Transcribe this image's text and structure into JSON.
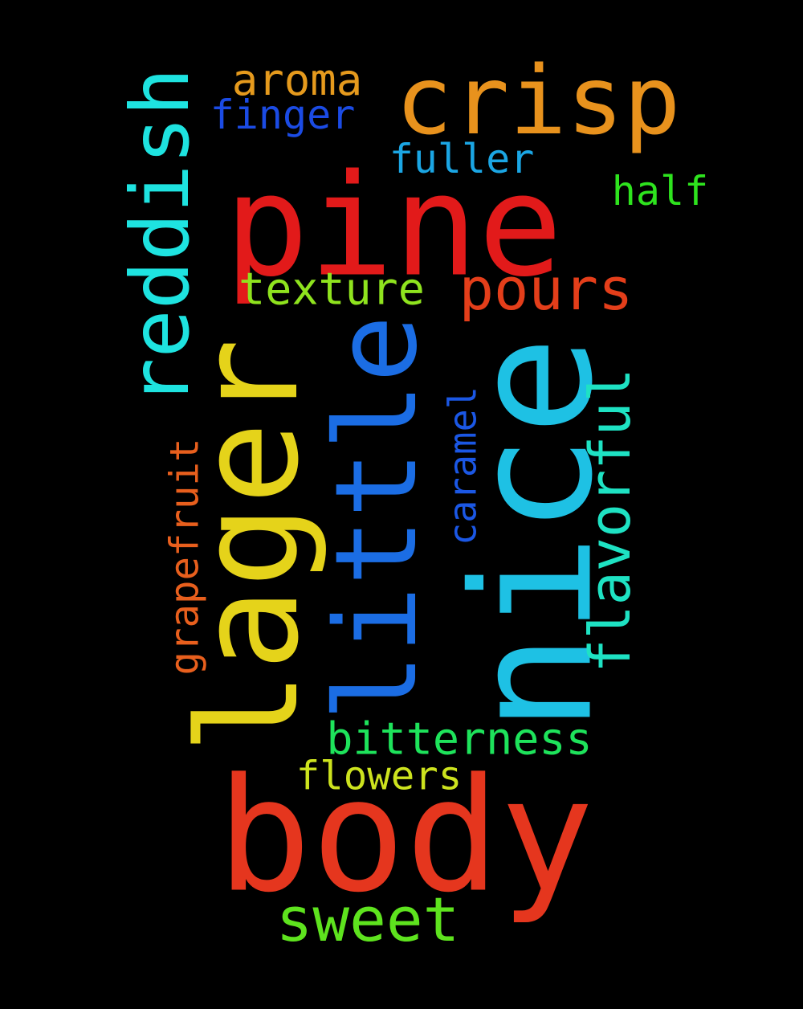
{
  "background": "#000000",
  "words": {
    "pine": {
      "text": "pine",
      "color": "#e21a1a",
      "orientation": "horizontal"
    },
    "body": {
      "text": "body",
      "color": "#e5361e",
      "orientation": "horizontal"
    },
    "crisp": {
      "text": "crisp",
      "color": "#e8921d",
      "orientation": "horizontal"
    },
    "nice": {
      "text": "nice",
      "color": "#1ec1e4",
      "orientation": "vertical"
    },
    "lager": {
      "text": "lager",
      "color": "#e5d31a",
      "orientation": "vertical"
    },
    "little": {
      "text": "little",
      "color": "#1b6de4",
      "orientation": "vertical"
    },
    "reddish": {
      "text": "reddish",
      "color": "#1ee3e0",
      "orientation": "vertical"
    },
    "pours": {
      "text": "pours",
      "color": "#e43e1a",
      "orientation": "horizontal"
    },
    "sweet": {
      "text": "sweet",
      "color": "#5ee31e",
      "orientation": "horizontal"
    },
    "flavorful": {
      "text": "flavorful",
      "color": "#1ee2c3",
      "orientation": "vertical"
    },
    "texture": {
      "text": "texture",
      "color": "#8fe31e",
      "orientation": "horizontal"
    },
    "bitterness": {
      "text": "bitterness",
      "color": "#1ee35b",
      "orientation": "horizontal"
    },
    "aroma": {
      "text": "aroma",
      "color": "#e59a1d",
      "orientation": "horizontal"
    },
    "finger": {
      "text": "finger",
      "color": "#1b4be4",
      "orientation": "horizontal"
    },
    "fuller": {
      "text": "fuller",
      "color": "#1ba6e4",
      "orientation": "horizontal"
    },
    "half": {
      "text": "half",
      "color": "#2ee31e",
      "orientation": "horizontal"
    },
    "flowers": {
      "text": "flowers",
      "color": "#cde31e",
      "orientation": "horizontal"
    },
    "grapefruit": {
      "text": "grapefruit",
      "color": "#e85f1d",
      "orientation": "vertical"
    },
    "caramel": {
      "text": "caramel",
      "color": "#1b57e4",
      "orientation": "vertical"
    }
  }
}
